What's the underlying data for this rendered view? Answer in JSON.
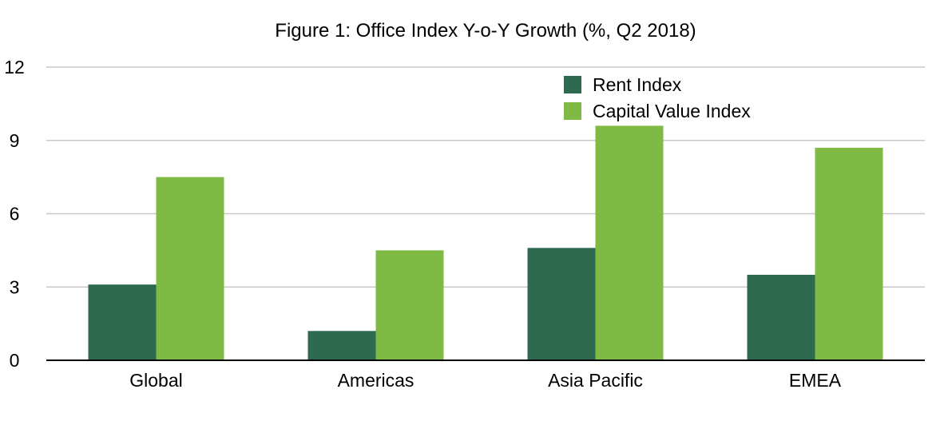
{
  "chart_data": {
    "type": "bar",
    "title": "Figure 1: Office Index Y-o-Y Growth (%, Q2 2018)",
    "xlabel": "",
    "ylabel": "",
    "categories": [
      "Global",
      "Americas",
      "Asia Pacific",
      "EMEA"
    ],
    "series": [
      {
        "name": "Rent Index",
        "values": [
          3.1,
          1.2,
          4.6,
          3.5
        ],
        "color": "#2d6a50"
      },
      {
        "name": "Capital Value Index",
        "values": [
          7.5,
          4.5,
          9.6,
          8.7
        ],
        "color": "#7fbb44"
      }
    ],
    "ylim": [
      0,
      12
    ],
    "yticks": [
      0,
      3,
      6,
      9,
      12
    ],
    "ytick_labels": [
      "0",
      "3",
      "6",
      "9",
      "12"
    ],
    "grid": true,
    "legend_position": "top-right"
  }
}
